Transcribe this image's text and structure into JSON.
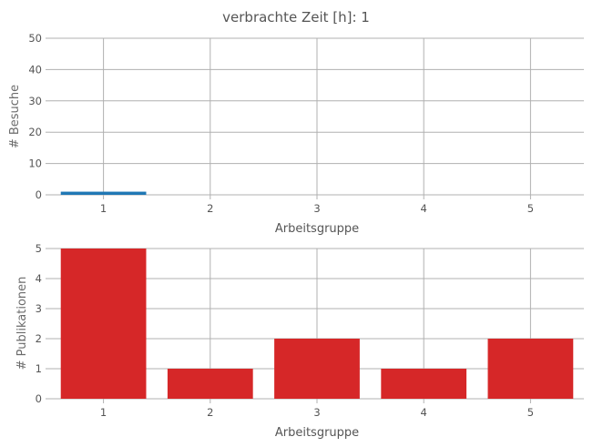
{
  "figure": {
    "title": "verbrachte Zeit [h]: 1"
  },
  "colors": {
    "visits": "#1f77b4",
    "publications": "#d62728",
    "grid": "#b0b0b0",
    "text": "#555555"
  },
  "chart_data": [
    {
      "type": "bar",
      "categories": [
        "1",
        "2",
        "3",
        "4",
        "5"
      ],
      "values": [
        1,
        0,
        0,
        0,
        0
      ],
      "title": "",
      "xlabel": "Arbeitsgruppe",
      "ylabel": "# Besuche",
      "ylim": [
        0,
        50
      ],
      "yticks": [
        "0",
        "10",
        "20",
        "30",
        "40",
        "50"
      ],
      "grid": true
    },
    {
      "type": "bar",
      "categories": [
        "1",
        "2",
        "3",
        "4",
        "5"
      ],
      "values": [
        5,
        1,
        2,
        1,
        2
      ],
      "title": "",
      "xlabel": "Arbeitsgruppe",
      "ylabel": "# Publikationen",
      "ylim": [
        0,
        5
      ],
      "yticks": [
        "0",
        "1",
        "2",
        "3",
        "4",
        "5"
      ],
      "grid": true
    }
  ]
}
